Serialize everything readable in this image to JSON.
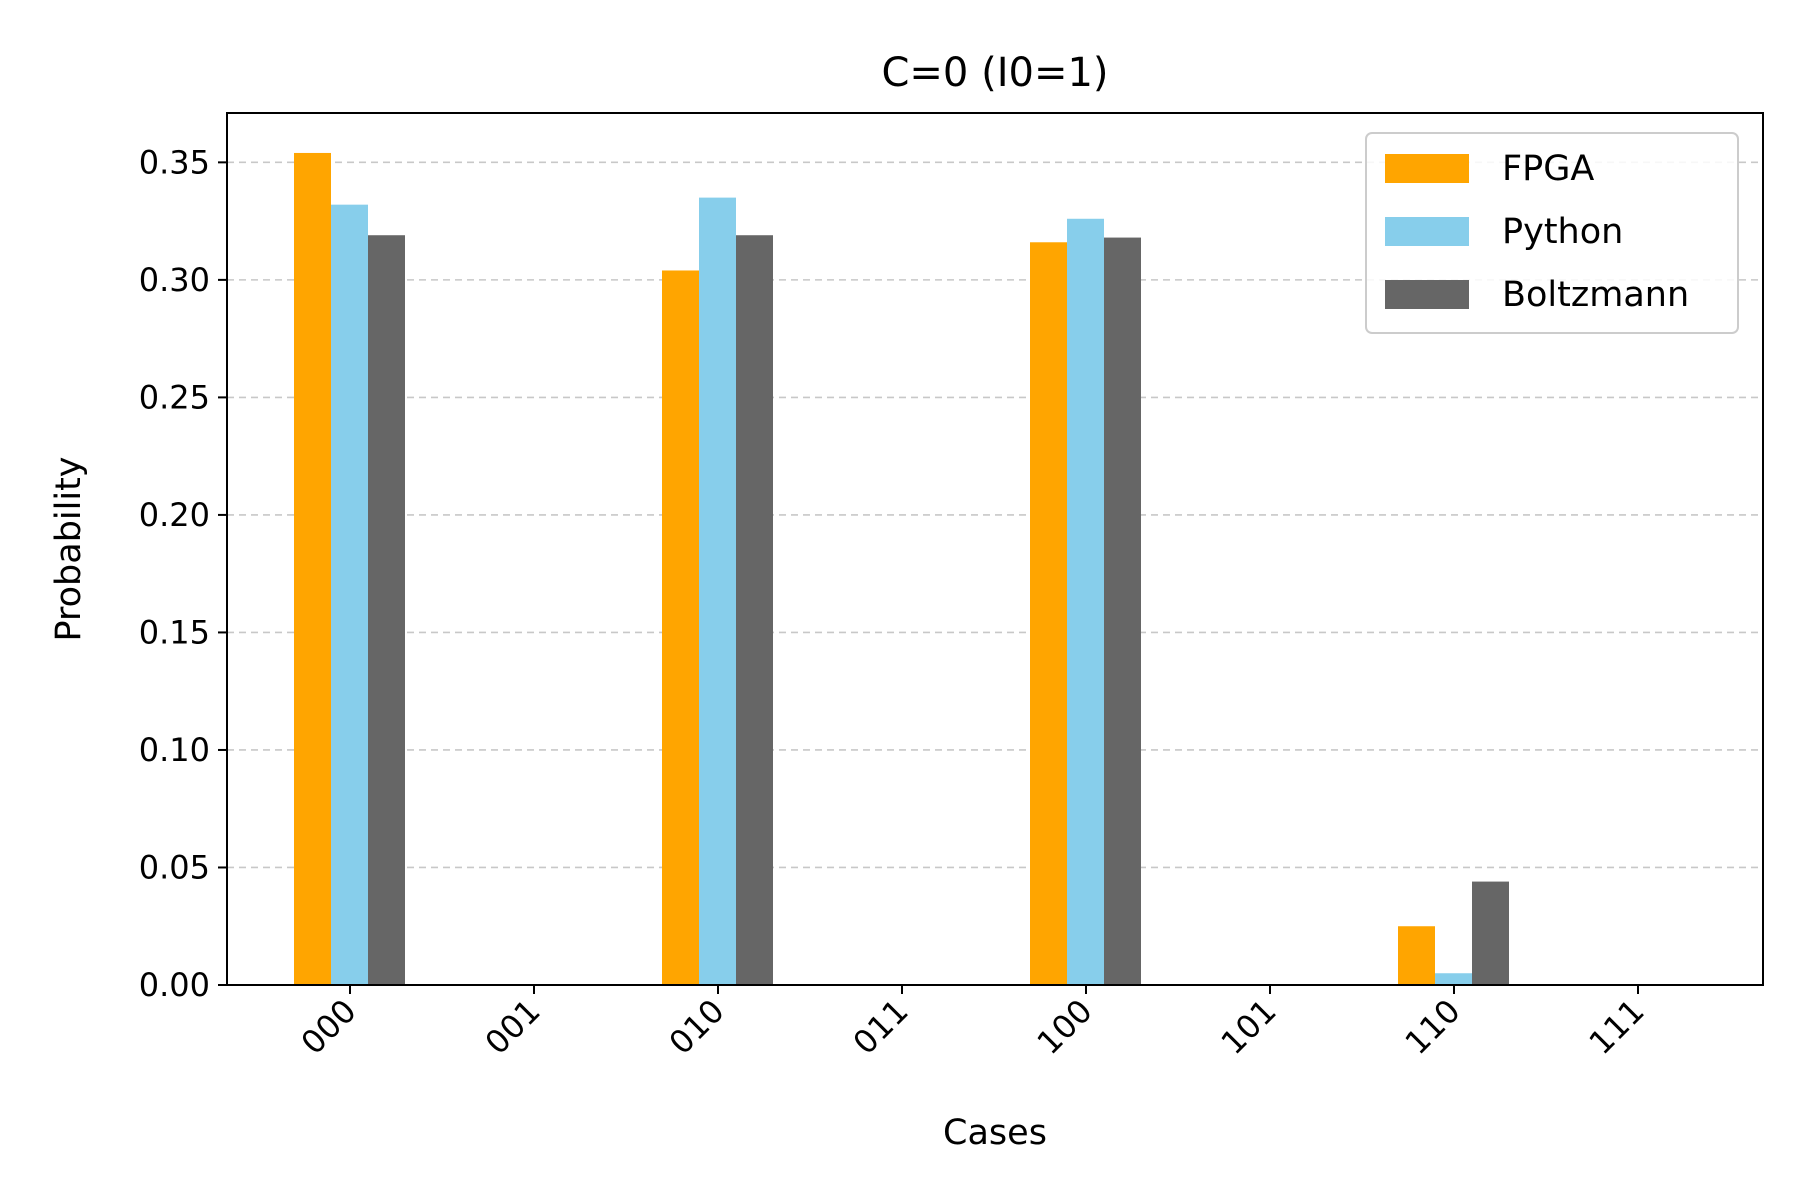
{
  "chart_data": {
    "type": "bar",
    "title": "C=0 (I0=1)",
    "xlabel": "Cases",
    "ylabel": "Probability",
    "categories": [
      "000",
      "001",
      "010",
      "011",
      "100",
      "101",
      "110",
      "111"
    ],
    "series": [
      {
        "name": "FPGA",
        "color": "#ffa500",
        "values": [
          0.354,
          0,
          0.304,
          0,
          0.316,
          0,
          0.025,
          0
        ]
      },
      {
        "name": "Python",
        "color": "#87ceeb",
        "values": [
          0.332,
          0,
          0.335,
          0,
          0.326,
          0,
          0.005,
          0
        ]
      },
      {
        "name": "Boltzmann",
        "color": "#666666",
        "values": [
          0.319,
          0,
          0.319,
          0,
          0.318,
          0,
          0.044,
          0
        ]
      }
    ],
    "ylim": [
      0,
      0.371
    ],
    "yticks": [
      "0.00",
      "0.05",
      "0.10",
      "0.15",
      "0.20",
      "0.25",
      "0.30",
      "0.35"
    ],
    "grid": "y-dashed",
    "legend_position": "top-right"
  }
}
